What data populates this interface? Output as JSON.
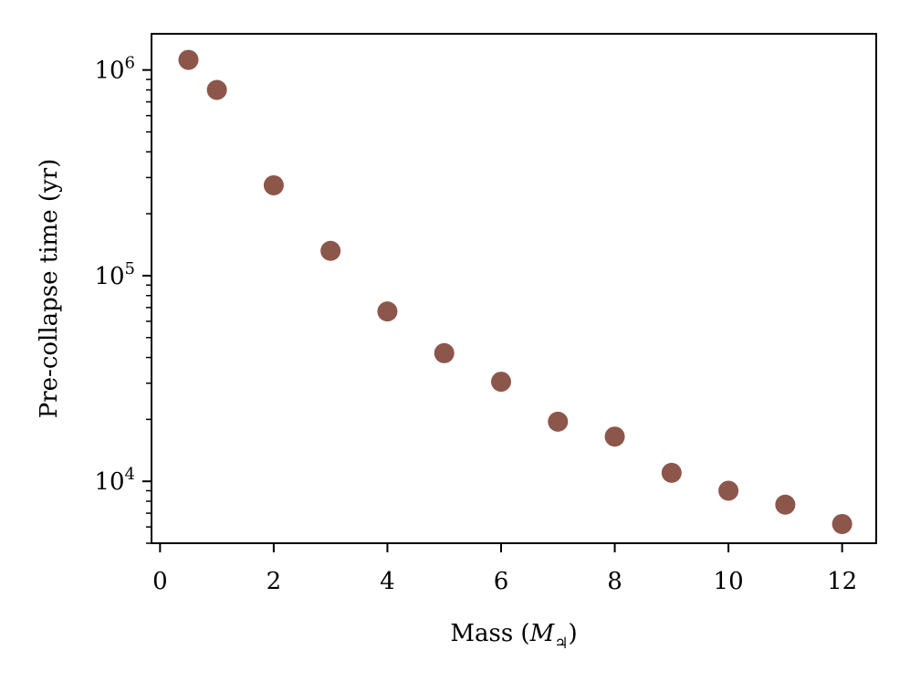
{
  "chart_data": {
    "type": "scatter",
    "xlabel": "Mass",
    "xlabel_unit_symbol": "M",
    "xlabel_unit_subscript": "♃",
    "ylabel": "Pre-collapse time (yr)",
    "xlim": [
      -0.15,
      12.6
    ],
    "ylim": [
      5000,
      1500000
    ],
    "yscale": "log",
    "grid": false,
    "x_ticks": [
      0,
      2,
      4,
      6,
      8,
      10,
      12
    ],
    "x_tick_labels": [
      "0",
      "2",
      "4",
      "6",
      "8",
      "10",
      "12"
    ],
    "y_ticks": [
      10000,
      100000,
      1000000
    ],
    "y_tick_labels": [
      {
        "base": "10",
        "exp": "4"
      },
      {
        "base": "10",
        "exp": "5"
      },
      {
        "base": "10",
        "exp": "6"
      }
    ],
    "marker_color": "#8c564b",
    "points": [
      {
        "x": 0.5,
        "y": 1120000
      },
      {
        "x": 1,
        "y": 800000
      },
      {
        "x": 2,
        "y": 275000
      },
      {
        "x": 3,
        "y": 132000
      },
      {
        "x": 4,
        "y": 67000
      },
      {
        "x": 5,
        "y": 42000
      },
      {
        "x": 6,
        "y": 30500
      },
      {
        "x": 7,
        "y": 19500
      },
      {
        "x": 8,
        "y": 16500
      },
      {
        "x": 9,
        "y": 11000
      },
      {
        "x": 10,
        "y": 9000
      },
      {
        "x": 11,
        "y": 7700
      },
      {
        "x": 12,
        "y": 6200
      }
    ]
  }
}
